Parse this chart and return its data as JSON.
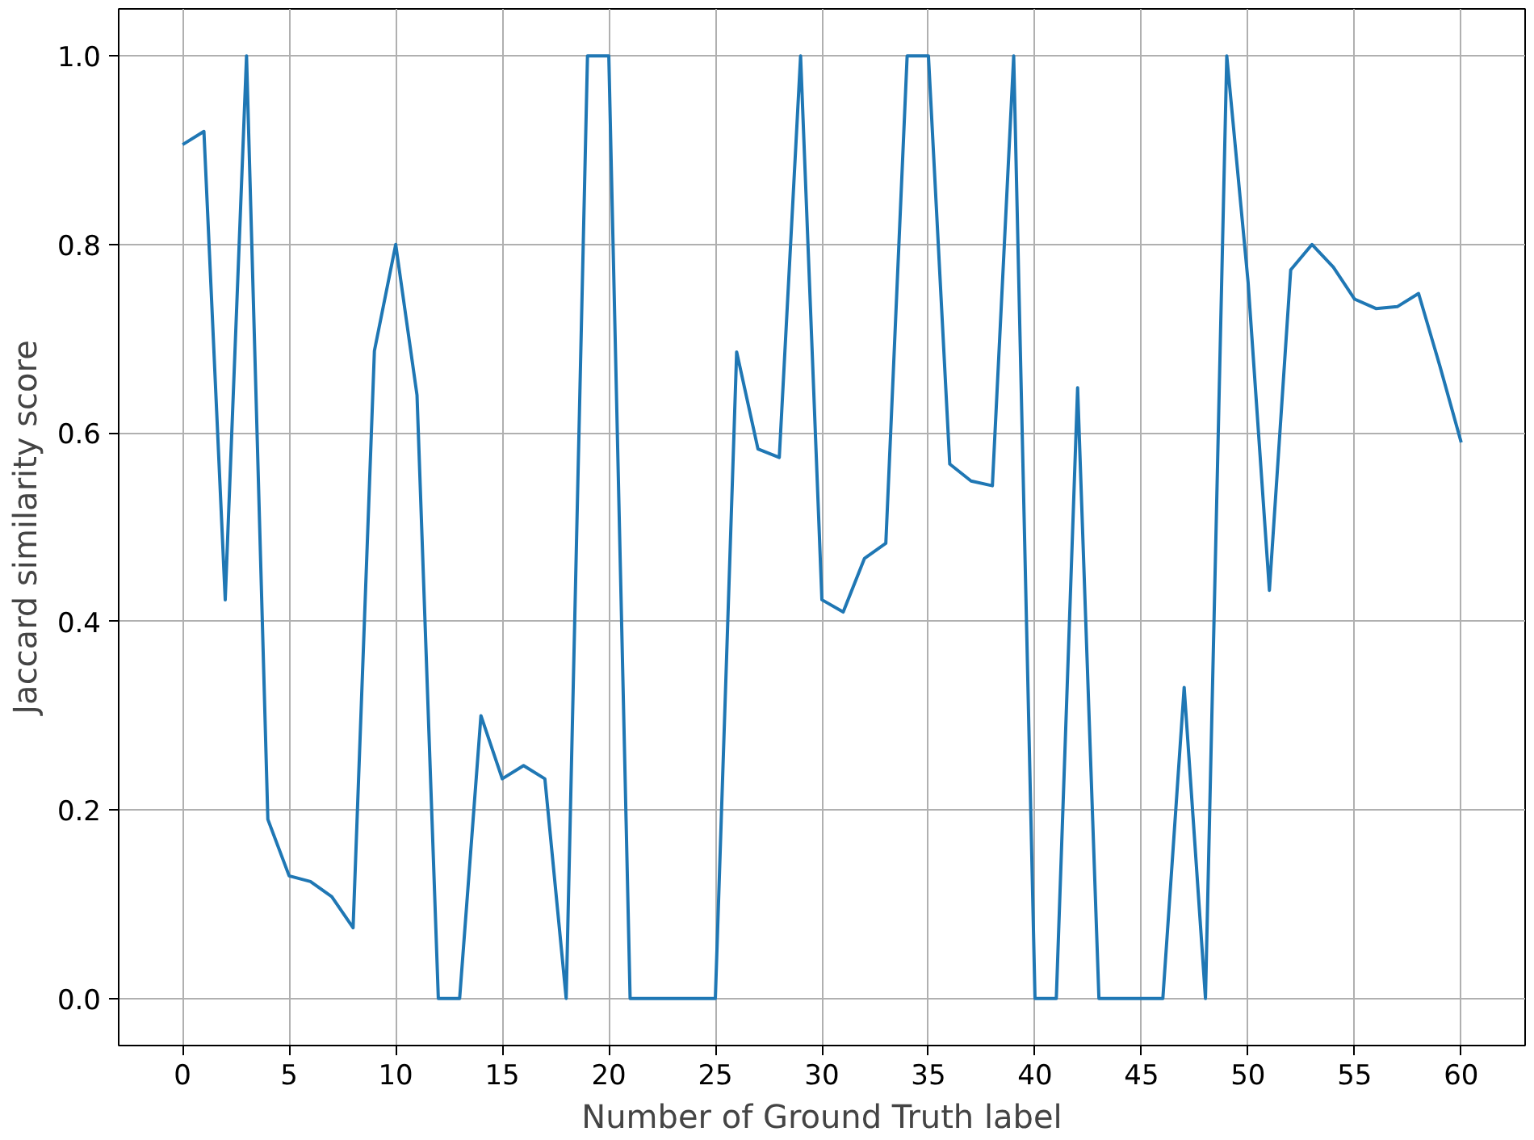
{
  "chart_data": {
    "type": "line",
    "xlabel": "Number of Ground Truth label",
    "ylabel": "Jaccard similarity score",
    "x": [
      0,
      1,
      2,
      3,
      4,
      5,
      6,
      7,
      8,
      9,
      10,
      11,
      12,
      13,
      14,
      15,
      16,
      17,
      18,
      19,
      20,
      21,
      22,
      23,
      24,
      25,
      26,
      27,
      28,
      29,
      30,
      31,
      32,
      33,
      34,
      35,
      36,
      37,
      38,
      39,
      40,
      41,
      42,
      43,
      44,
      45,
      46,
      47,
      48,
      49,
      50,
      51,
      52,
      53,
      54,
      55,
      56,
      57,
      58,
      59,
      60
    ],
    "series": [
      {
        "color": "#1f77b4",
        "values": [
          0.906,
          0.92,
          0.423,
          1.0,
          0.19,
          0.13,
          0.124,
          0.108,
          0.075,
          0.687,
          0.8,
          0.64,
          0,
          0,
          0.3,
          0.233,
          0.247,
          0.233,
          0,
          1.0,
          1.0,
          0,
          0,
          0,
          0,
          0,
          0.686,
          0.583,
          0.574,
          1.0,
          0.423,
          0.41,
          0.467,
          0.483,
          1.0,
          1.0,
          0.567,
          0.549,
          0.544,
          1.0,
          0,
          0,
          0.648,
          0,
          0,
          0,
          0,
          0.33,
          0,
          1.0,
          0.76,
          0.433,
          0.773,
          0.8,
          0.776,
          0.742,
          0.732,
          0.734,
          0.748,
          0.671,
          0.59
        ]
      }
    ],
    "xlim": [
      -3,
      63
    ],
    "ylim": [
      -0.05,
      1.05
    ],
    "xticks": [
      0,
      5,
      10,
      15,
      20,
      25,
      30,
      35,
      40,
      45,
      50,
      55,
      60
    ],
    "yticks": [
      {
        "value": 0,
        "label": "0.0"
      },
      {
        "value": 0.2,
        "label": "0.2"
      },
      {
        "value": 0.4,
        "label": "0.4"
      },
      {
        "value": 0.6,
        "label": "0.6"
      },
      {
        "value": 0.8,
        "label": "0.8"
      },
      {
        "value": 1.0,
        "label": "1.0"
      }
    ],
    "grid": true,
    "line_style": "solid",
    "marker": "none"
  }
}
